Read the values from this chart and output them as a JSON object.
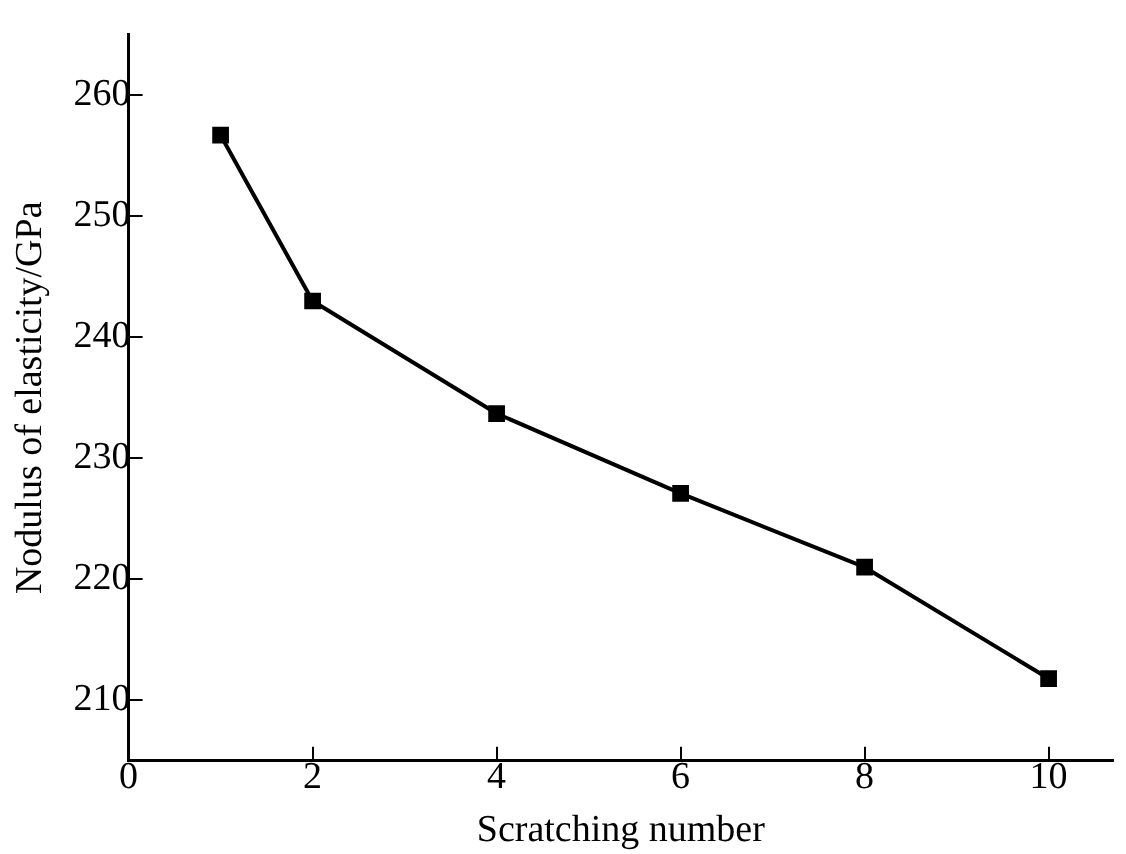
{
  "chart_data": {
    "type": "line",
    "xlabel": "Scratching number",
    "ylabel": "Nodulus of elasticity/GPa",
    "x": [
      1,
      2,
      4,
      6,
      8,
      10
    ],
    "series": [
      {
        "color": "#000000",
        "values": [
          256.7,
          243.0,
          233.7,
          227.1,
          221.0,
          211.8
        ]
      }
    ],
    "xlim": [
      0,
      10.7
    ],
    "xticks": [
      0,
      2,
      4,
      6,
      8,
      10
    ],
    "ylim": [
      205,
      265
    ],
    "yticks": [
      210,
      220,
      230,
      240,
      250,
      260
    ],
    "grid": false,
    "legend": false,
    "marker": "square",
    "line_style": "solid"
  }
}
